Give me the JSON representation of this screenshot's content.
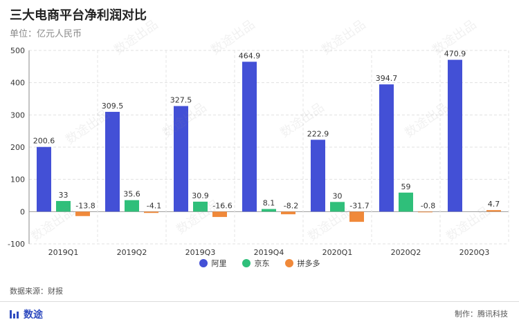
{
  "title": "三大电商平台净利润对比",
  "subtitle": "单位：亿元人民币",
  "source": "数据来源：财报",
  "brand": "数途",
  "maker": "制作：腾讯科技",
  "watermark": "数途出品",
  "colors": {
    "阿里": "#4350d6",
    "京东": "#2fbf7a",
    "拼多多": "#f0893a"
  },
  "chart_data": {
    "type": "bar",
    "categories": [
      "2019Q1",
      "2019Q2",
      "2019Q3",
      "2019Q4",
      "2020Q1",
      "2020Q2",
      "2020Q3"
    ],
    "series": [
      {
        "name": "阿里",
        "values": [
          200.6,
          309.5,
          327.5,
          464.9,
          222.9,
          394.7,
          470.9
        ]
      },
      {
        "name": "京东",
        "values": [
          33,
          35.6,
          30.9,
          8.1,
          30,
          59,
          null
        ]
      },
      {
        "name": "拼多多",
        "values": [
          -13.8,
          -4.1,
          -16.6,
          -8.2,
          -31.7,
          -0.8,
          4.7
        ]
      }
    ],
    "yticks": [
      -100,
      0,
      100,
      200,
      300,
      400,
      500
    ],
    "ylim": [
      -100,
      500
    ],
    "grid": true,
    "legend_position": "bottom-center"
  }
}
